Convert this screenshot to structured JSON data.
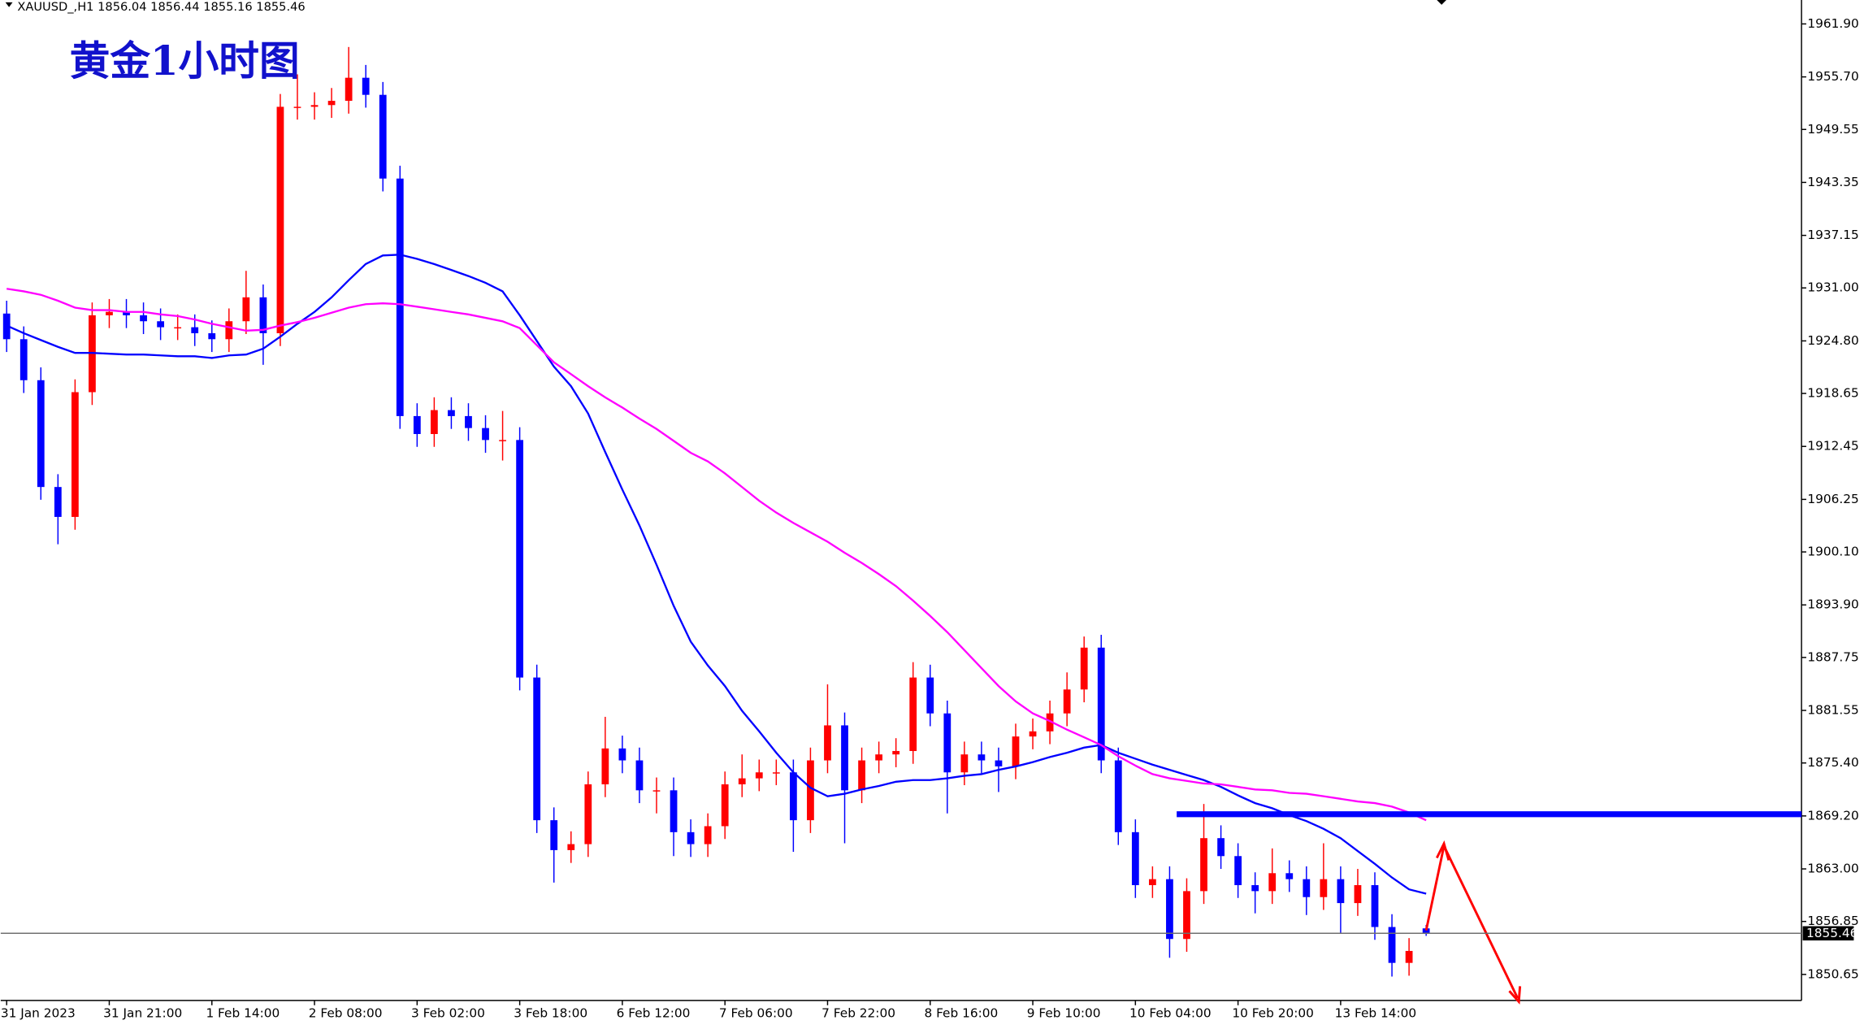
{
  "chart_data": {
    "type": "candlestick",
    "header": "XAUUSD_,H1 1856.04 1856.44 1855.16 1855.46",
    "title": "黄金1小时图",
    "categories": [
      "31 Jan 2023",
      null,
      null,
      null,
      null,
      null,
      "31 Jan 21:00",
      null,
      null,
      null,
      null,
      null,
      "1 Feb 14:00",
      null,
      null,
      null,
      null,
      null,
      "2 Feb 08:00",
      null,
      null,
      null,
      null,
      null,
      "3 Feb 02:00",
      null,
      null,
      null,
      null,
      null,
      "3 Feb 18:00",
      null,
      null,
      null,
      null,
      null,
      "6 Feb 12:00",
      null,
      null,
      null,
      null,
      null,
      "7 Feb 06:00",
      null,
      null,
      null,
      null,
      null,
      "7 Feb 22:00",
      null,
      null,
      null,
      null,
      null,
      "8 Feb 16:00",
      null,
      null,
      null,
      null,
      null,
      "9 Feb 10:00",
      null,
      null,
      null,
      null,
      null,
      "10 Feb 04:00",
      null,
      null,
      null,
      null,
      null,
      "10 Feb 20:00",
      null,
      null,
      null,
      null,
      null,
      "13 Feb 14:00",
      null,
      null,
      null,
      null,
      null
    ],
    "open": [
      1928.0,
      1925.0,
      1920.2,
      1907.7,
      1904.2,
      1918.8,
      1927.8,
      1928.2,
      1927.8,
      1927.1,
      1926.4,
      1926.4,
      1925.7,
      1925.0,
      1927.1,
      1929.9,
      1925.7,
      1952.2,
      1952.2,
      1952.4,
      1952.9,
      1955.6,
      1953.6,
      1943.8,
      1916.0,
      1913.9,
      1916.7,
      1916.0,
      1914.6,
      1913.2,
      1913.2,
      1885.4,
      1868.7,
      1865.2,
      1865.9,
      1872.9,
      1877.1,
      1875.7,
      1872.2,
      1872.2,
      1867.3,
      1865.9,
      1868.0,
      1872.9,
      1873.6,
      1874.3,
      1874.3,
      1868.7,
      1875.7,
      1879.8,
      1872.2,
      1875.7,
      1876.4,
      1876.8,
      1885.4,
      1881.2,
      1874.3,
      1876.4,
      1875.7,
      1875.0,
      1878.5,
      1879.1,
      1881.2,
      1884.0,
      1888.9,
      1875.7,
      1867.3,
      1861.1,
      1861.8,
      1854.8,
      1860.4,
      1866.6,
      1864.5,
      1861.1,
      1860.4,
      1862.5,
      1861.8,
      1859.7,
      1861.8,
      1859.0,
      1861.1,
      1856.2,
      1852.0,
      1856.04
    ],
    "high": [
      1929.5,
      1926.5,
      1921.7,
      1909.2,
      1920.3,
      1929.3,
      1929.7,
      1929.7,
      1929.3,
      1928.6,
      1927.9,
      1927.9,
      1927.2,
      1928.6,
      1933.0,
      1931.4,
      1953.7,
      1956.0,
      1953.9,
      1954.4,
      1959.2,
      1957.1,
      1955.1,
      1945.3,
      1917.5,
      1918.2,
      1918.2,
      1917.5,
      1916.1,
      1916.6,
      1914.7,
      1886.9,
      1870.2,
      1867.4,
      1874.4,
      1880.8,
      1878.6,
      1877.2,
      1873.7,
      1873.7,
      1868.8,
      1869.5,
      1874.4,
      1876.4,
      1875.8,
      1875.8,
      1875.8,
      1877.2,
      1884.6,
      1881.3,
      1877.2,
      1877.9,
      1878.3,
      1887.2,
      1886.9,
      1882.7,
      1877.9,
      1877.9,
      1877.2,
      1880.0,
      1880.6,
      1882.7,
      1886.0,
      1890.2,
      1890.4,
      1877.2,
      1868.8,
      1863.3,
      1863.3,
      1861.9,
      1870.6,
      1868.1,
      1866.0,
      1862.6,
      1865.4,
      1864.0,
      1863.3,
      1866.0,
      1863.3,
      1863.0,
      1862.6,
      1857.7,
      1854.9,
      1856.44
    ],
    "low": [
      1923.5,
      1918.7,
      1906.2,
      1901.0,
      1902.7,
      1917.3,
      1926.3,
      1926.3,
      1925.6,
      1924.9,
      1924.9,
      1924.2,
      1923.5,
      1923.5,
      1925.6,
      1922.0,
      1924.2,
      1950.7,
      1950.7,
      1950.9,
      1951.4,
      1952.1,
      1942.3,
      1914.5,
      1912.4,
      1912.4,
      1914.5,
      1913.1,
      1911.7,
      1910.8,
      1883.9,
      1867.2,
      1861.4,
      1863.7,
      1864.4,
      1871.4,
      1874.2,
      1870.7,
      1869.5,
      1864.5,
      1864.4,
      1864.4,
      1866.5,
      1871.4,
      1872.1,
      1872.8,
      1865.0,
      1867.2,
      1874.2,
      1866.0,
      1870.7,
      1874.2,
      1874.9,
      1875.3,
      1879.7,
      1869.5,
      1872.8,
      1874.2,
      1872.0,
      1873.5,
      1877.0,
      1877.6,
      1879.7,
      1882.5,
      1874.2,
      1865.8,
      1859.6,
      1859.6,
      1852.6,
      1853.3,
      1858.9,
      1863.0,
      1859.6,
      1857.8,
      1858.9,
      1860.3,
      1857.6,
      1858.2,
      1855.5,
      1857.5,
      1854.7,
      1850.4,
      1850.5,
      1855.16
    ],
    "close": [
      1925.0,
      1920.2,
      1907.7,
      1904.2,
      1918.8,
      1927.8,
      1928.2,
      1927.8,
      1927.1,
      1926.4,
      1926.4,
      1925.7,
      1925.0,
      1927.1,
      1929.9,
      1925.7,
      1952.2,
      1952.2,
      1952.4,
      1952.9,
      1955.6,
      1953.6,
      1943.8,
      1916.0,
      1913.9,
      1916.7,
      1916.0,
      1914.6,
      1913.2,
      1913.2,
      1885.4,
      1868.7,
      1865.2,
      1865.9,
      1872.9,
      1877.1,
      1875.7,
      1872.2,
      1872.2,
      1867.3,
      1865.9,
      1868.0,
      1872.9,
      1873.6,
      1874.3,
      1874.3,
      1868.7,
      1875.7,
      1879.8,
      1872.2,
      1875.7,
      1876.4,
      1876.8,
      1885.4,
      1881.2,
      1874.3,
      1876.4,
      1875.7,
      1875.0,
      1878.5,
      1879.1,
      1881.2,
      1884.0,
      1888.9,
      1875.7,
      1867.3,
      1861.1,
      1861.8,
      1854.8,
      1860.4,
      1866.6,
      1864.5,
      1861.1,
      1860.4,
      1862.5,
      1861.8,
      1859.7,
      1861.8,
      1859.0,
      1861.1,
      1856.2,
      1852.0,
      1853.4,
      1855.46
    ],
    "up_color": "#ff0000",
    "down_color": "#0000ff",
    "lines": [
      {
        "color": "#0000ff",
        "values": [
          1926.6,
          1925.7,
          1924.9,
          1924.1,
          1923.4,
          1923.4,
          1923.3,
          1923.2,
          1923.2,
          1923.1,
          1923.0,
          1923.0,
          1922.8,
          1923.1,
          1923.2,
          1923.9,
          1925.3,
          1926.8,
          1928.2,
          1929.9,
          1931.9,
          1933.8,
          1934.8,
          1934.9,
          1934.4,
          1933.8,
          1933.1,
          1932.4,
          1931.6,
          1930.6,
          1927.8,
          1924.8,
          1921.8,
          1919.5,
          1916.3,
          1911.8,
          1907.4,
          1903.2,
          1898.6,
          1893.8,
          1889.6,
          1886.8,
          1884.4,
          1881.5,
          1879.1,
          1876.6,
          1874.3,
          1872.5,
          1871.5,
          1871.8,
          1872.3,
          1872.7,
          1873.2,
          1873.4,
          1873.4,
          1873.6,
          1873.9,
          1874.1,
          1874.6,
          1875.0,
          1875.5,
          1876.1,
          1876.6,
          1877.2,
          1877.5,
          1876.6,
          1875.9,
          1875.2,
          1874.6,
          1874.0,
          1873.4,
          1872.6,
          1871.6,
          1870.7,
          1870.1,
          1869.3,
          1868.6,
          1867.7,
          1866.6,
          1865.1,
          1863.6,
          1862.0,
          1860.6,
          1860.1
        ]
      },
      {
        "color": "#ff00ff",
        "values": [
          1930.9,
          1930.6,
          1930.2,
          1929.5,
          1928.7,
          1928.4,
          1928.4,
          1928.2,
          1928.2,
          1927.9,
          1927.7,
          1927.3,
          1926.8,
          1926.4,
          1926.0,
          1926.1,
          1926.6,
          1927.0,
          1927.5,
          1928.1,
          1928.7,
          1929.1,
          1929.2,
          1929.1,
          1928.8,
          1928.5,
          1928.2,
          1927.9,
          1927.5,
          1927.1,
          1926.3,
          1924.3,
          1922.3,
          1920.9,
          1919.5,
          1918.2,
          1917.0,
          1915.7,
          1914.5,
          1913.1,
          1911.7,
          1910.7,
          1909.3,
          1907.7,
          1906.1,
          1904.7,
          1903.5,
          1902.4,
          1901.3,
          1900.0,
          1898.8,
          1897.5,
          1896.1,
          1894.4,
          1892.6,
          1890.7,
          1888.6,
          1886.5,
          1884.4,
          1882.6,
          1881.2,
          1880.3,
          1879.3,
          1878.4,
          1877.5,
          1876.2,
          1875.1,
          1874.1,
          1873.6,
          1873.3,
          1873.0,
          1872.9,
          1872.6,
          1872.3,
          1872.2,
          1871.9,
          1871.8,
          1871.5,
          1871.2,
          1870.9,
          1870.7,
          1870.3,
          1869.6,
          1868.7
        ]
      }
    ],
    "level_line": {
      "value": 1869.4,
      "color": "#0000ff"
    },
    "current_price": 1855.46,
    "ylim": [
      1847.6,
      1964.7
    ],
    "yticks": [
      {
        "value": 1961.9,
        "label": "1961.90"
      },
      {
        "value": 1955.7,
        "label": "1955.70"
      },
      {
        "value": 1949.55,
        "label": "1949.55"
      },
      {
        "value": 1943.35,
        "label": "1943.35"
      },
      {
        "value": 1937.15,
        "label": "1937.15"
      },
      {
        "value": 1931.0,
        "label": "1931.00"
      },
      {
        "value": 1924.8,
        "label": "1924.80"
      },
      {
        "value": 1918.65,
        "label": "1918.65"
      },
      {
        "value": 1912.45,
        "label": "1912.45"
      },
      {
        "value": 1906.25,
        "label": "1906.25"
      },
      {
        "value": 1900.1,
        "label": "1900.10"
      },
      {
        "value": 1893.9,
        "label": "1893.90"
      },
      {
        "value": 1887.75,
        "label": "1887.75"
      },
      {
        "value": 1881.55,
        "label": "1881.55"
      },
      {
        "value": 1875.4,
        "label": "1875.40"
      },
      {
        "value": 1869.2,
        "label": "1869.20"
      },
      {
        "value": 1863.0,
        "label": "1863.00"
      },
      {
        "value": 1856.85,
        "label": "1856.85"
      },
      {
        "value": 1850.65,
        "label": "1850.65"
      }
    ]
  }
}
